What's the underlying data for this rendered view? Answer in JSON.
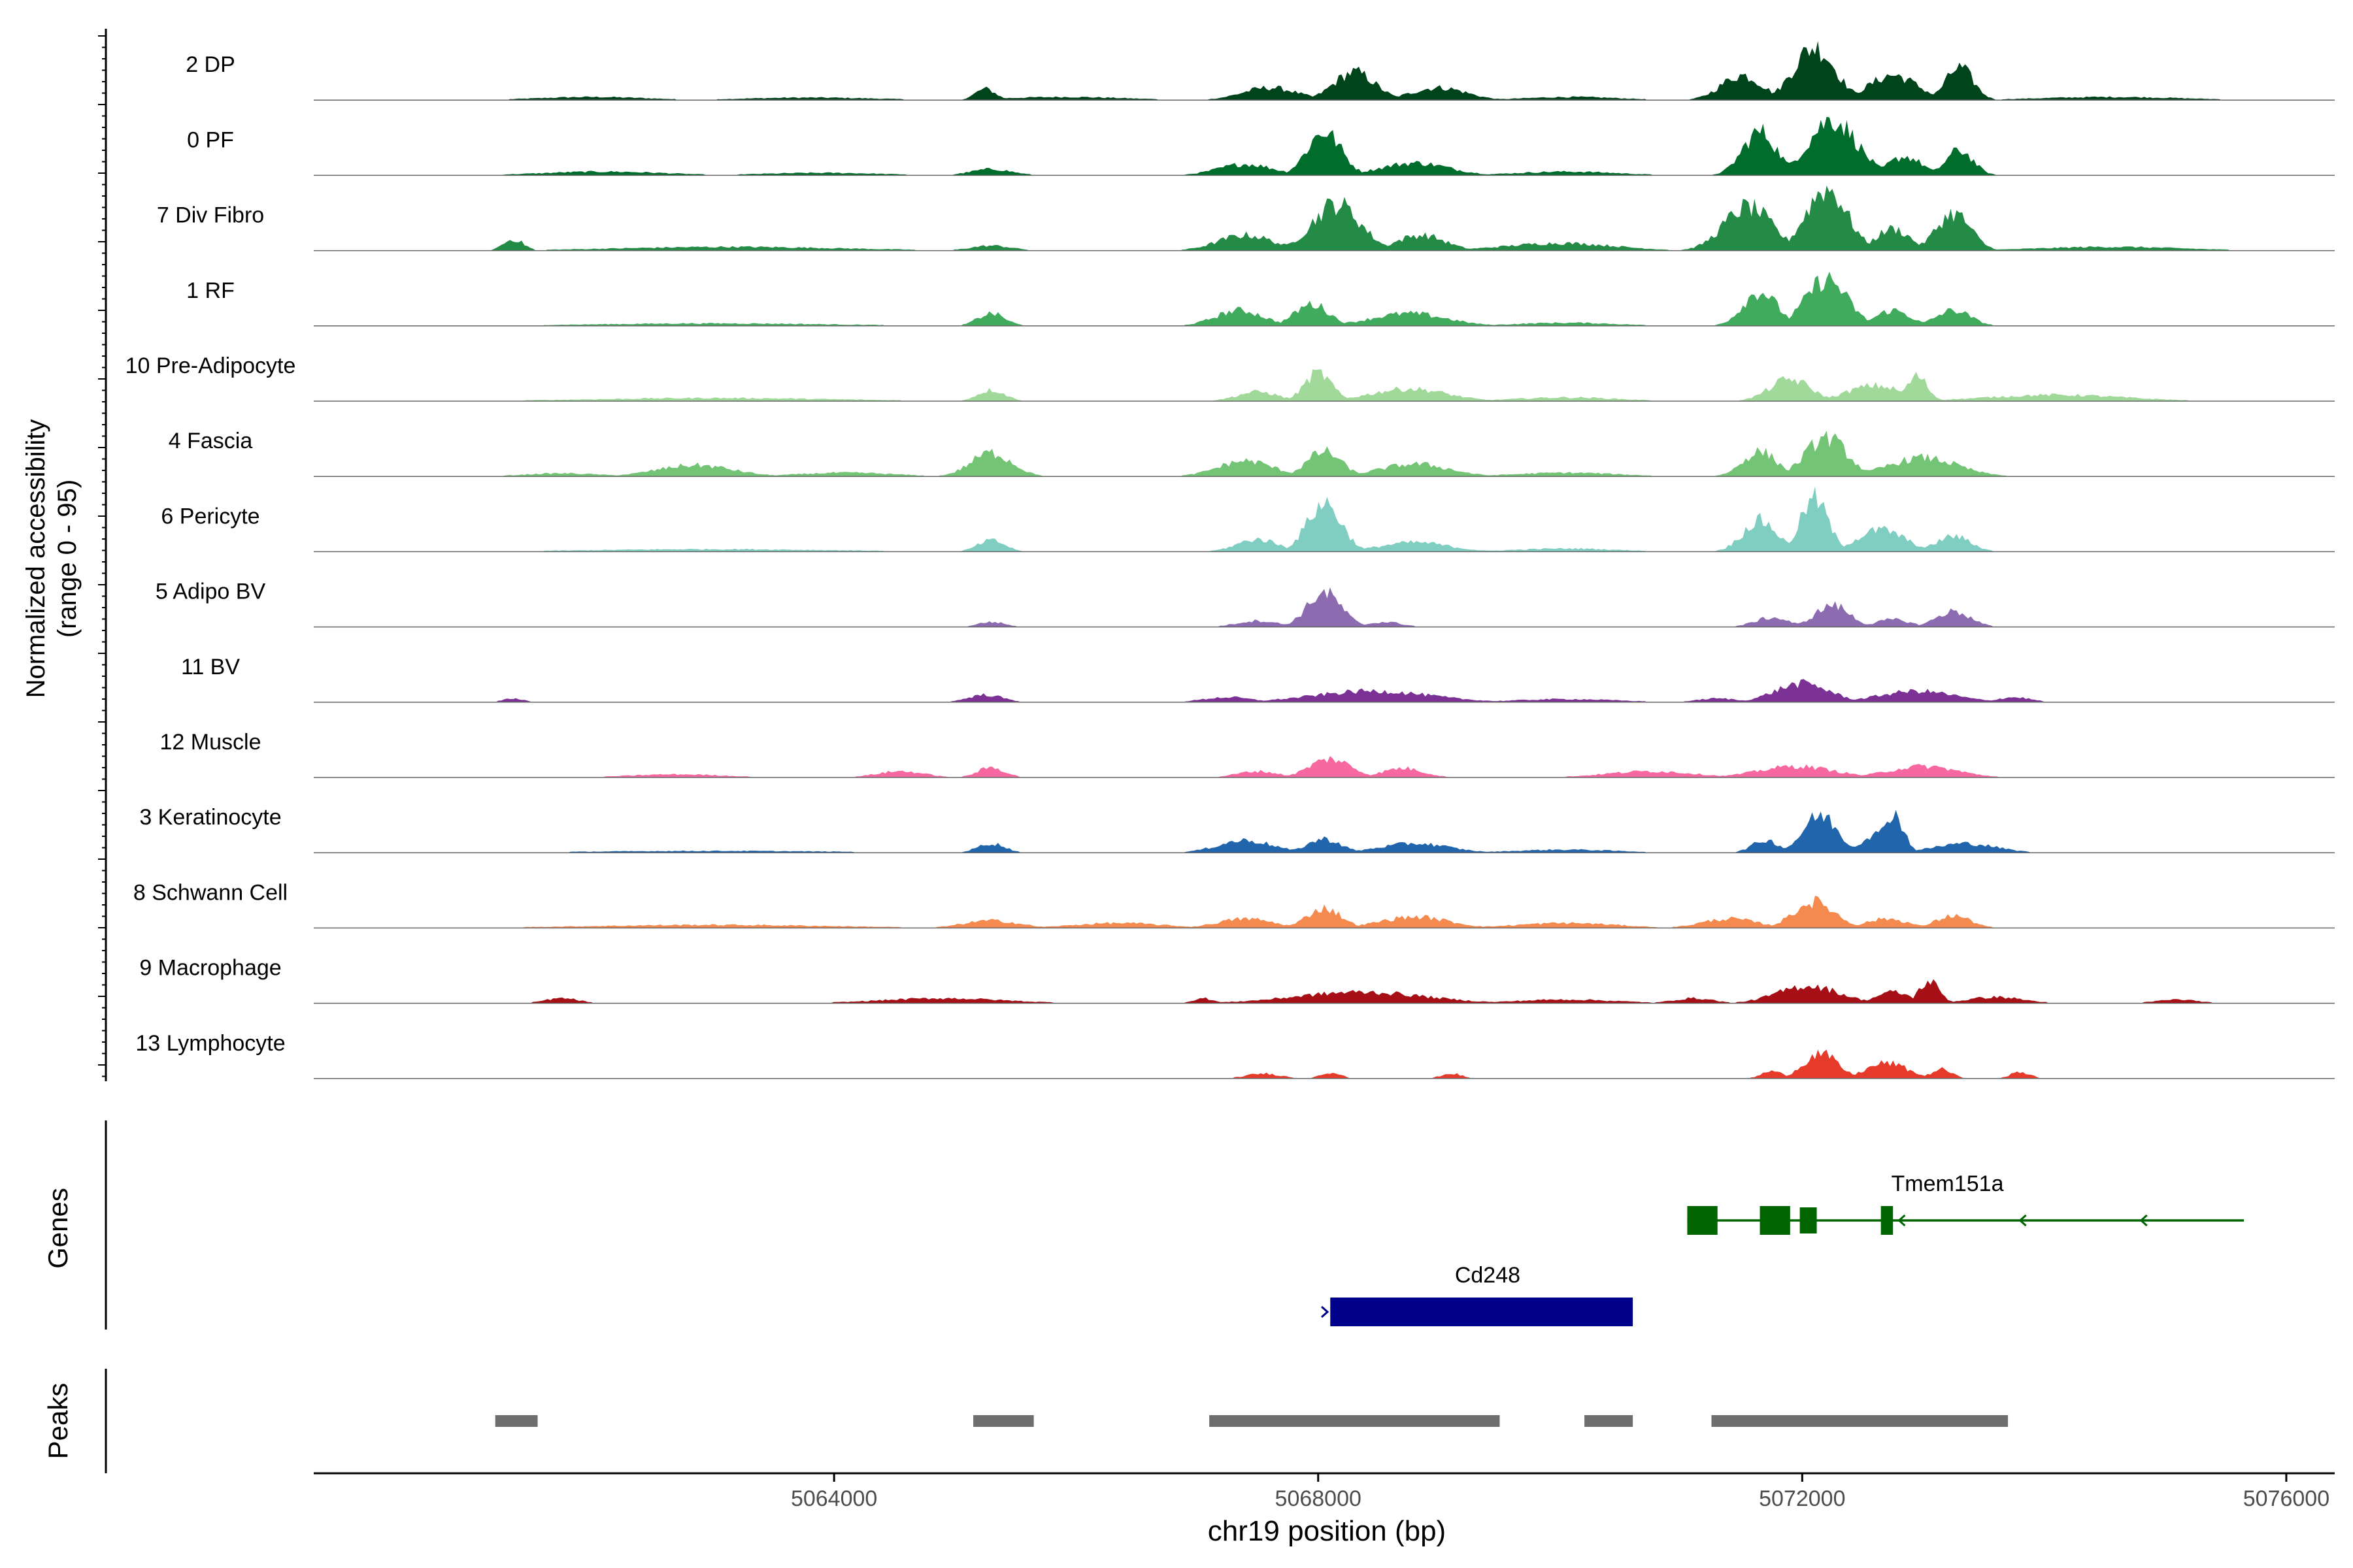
{
  "chart_data": {
    "type": "area",
    "xlabel": "chr19 position (bp)",
    "ylabel_line1": "Normalized accessibility",
    "ylabel_line2": "(range 0 - 95)",
    "xlim": [
      5059700,
      5076400
    ],
    "x_ticks": [
      5064000,
      5068000,
      5072000,
      5076000
    ],
    "x_tick_labels": [
      "5064000",
      "5068000",
      "5072000",
      "5076000"
    ],
    "track_labels": {
      "genes": "Genes",
      "peaks": "Peaks"
    },
    "tracks": [
      {
        "label": "2 DP",
        "color": "#00441b",
        "peaks": [
          [
            5061200,
            5062800,
            0.05
          ],
          [
            5062800,
            5064800,
            0.04
          ],
          [
            5065300,
            5065200,
            0.18
          ],
          [
            5065000,
            5066800,
            0.05
          ],
          [
            5067200,
            5068000,
            0.2
          ],
          [
            5068000,
            5068600,
            0.45
          ],
          [
            5068600,
            5069400,
            0.2
          ],
          [
            5069400,
            5070800,
            0.05
          ],
          [
            5071200,
            5071800,
            0.4
          ],
          [
            5071800,
            5072400,
            0.85
          ],
          [
            5072400,
            5073100,
            0.4
          ],
          [
            5073100,
            5073500,
            0.52
          ],
          [
            5073500,
            5075600,
            0.05
          ]
        ]
      },
      {
        "label": "0 PF",
        "color": "#006d2c",
        "peaks": [
          [
            5061200,
            5063000,
            0.06
          ],
          [
            5063000,
            5064800,
            0.04
          ],
          [
            5065000,
            5065600,
            0.1
          ],
          [
            5067000,
            5067800,
            0.18
          ],
          [
            5067800,
            5068300,
            0.7
          ],
          [
            5068300,
            5069300,
            0.2
          ],
          [
            5069300,
            5070800,
            0.06
          ],
          [
            5071400,
            5071900,
            0.7
          ],
          [
            5071900,
            5072600,
            0.9
          ],
          [
            5072600,
            5073100,
            0.3
          ],
          [
            5073100,
            5073500,
            0.4
          ]
        ]
      },
      {
        "label": "7 Div Fibro",
        "color": "#238b45",
        "peaks": [
          [
            5061200,
            5061500,
            0.18
          ],
          [
            5061500,
            5064800,
            0.06
          ],
          [
            5065000,
            5065600,
            0.08
          ],
          [
            5067000,
            5067800,
            0.25
          ],
          [
            5067800,
            5068500,
            0.75
          ],
          [
            5068500,
            5069200,
            0.25
          ],
          [
            5069200,
            5070800,
            0.12
          ],
          [
            5071200,
            5071900,
            0.7
          ],
          [
            5071900,
            5072500,
            1.0
          ],
          [
            5072500,
            5073000,
            0.35
          ],
          [
            5073000,
            5073500,
            0.6
          ],
          [
            5073500,
            5075600,
            0.06
          ]
        ]
      },
      {
        "label": "1 RF",
        "color": "#41ab5d",
        "peaks": [
          [
            5061200,
            5064800,
            0.04
          ],
          [
            5065100,
            5065500,
            0.2
          ],
          [
            5067000,
            5067700,
            0.25
          ],
          [
            5067700,
            5068200,
            0.35
          ],
          [
            5068200,
            5069300,
            0.2
          ],
          [
            5069300,
            5070800,
            0.05
          ],
          [
            5071400,
            5071900,
            0.55
          ],
          [
            5071900,
            5072500,
            0.75
          ],
          [
            5072500,
            5073000,
            0.25
          ],
          [
            5073000,
            5073500,
            0.25
          ]
        ]
      },
      {
        "label": "10 Pre-Adipocyte",
        "color": "#a1d99b",
        "peaks": [
          [
            5061200,
            5064800,
            0.05
          ],
          [
            5065100,
            5065500,
            0.18
          ],
          [
            5067200,
            5067800,
            0.15
          ],
          [
            5067800,
            5068200,
            0.45
          ],
          [
            5068200,
            5069300,
            0.2
          ],
          [
            5069300,
            5070800,
            0.06
          ],
          [
            5071600,
            5072200,
            0.35
          ],
          [
            5072200,
            5073000,
            0.25
          ],
          [
            5072800,
            5073100,
            0.4
          ],
          [
            5073100,
            5075100,
            0.1
          ]
        ]
      },
      {
        "label": "4 Fascia",
        "color": "#74c476",
        "peaks": [
          [
            5061200,
            5062300,
            0.05
          ],
          [
            5062300,
            5063400,
            0.18
          ],
          [
            5063400,
            5064800,
            0.06
          ],
          [
            5065000,
            5065600,
            0.38
          ],
          [
            5067000,
            5067800,
            0.25
          ],
          [
            5067800,
            5068300,
            0.4
          ],
          [
            5068300,
            5069300,
            0.2
          ],
          [
            5069300,
            5070800,
            0.06
          ],
          [
            5071400,
            5071900,
            0.4
          ],
          [
            5071900,
            5072500,
            0.62
          ],
          [
            5072500,
            5073500,
            0.3
          ]
        ]
      },
      {
        "label": "6 Pericyte",
        "color": "#80cdc1",
        "peaks": [
          [
            5061200,
            5064800,
            0.04
          ],
          [
            5065100,
            5065500,
            0.18
          ],
          [
            5067200,
            5067800,
            0.2
          ],
          [
            5067800,
            5068300,
            0.78
          ],
          [
            5068300,
            5069300,
            0.15
          ],
          [
            5069300,
            5070800,
            0.05
          ],
          [
            5071400,
            5071900,
            0.5
          ],
          [
            5071900,
            5072300,
            0.85
          ],
          [
            5072300,
            5073000,
            0.35
          ],
          [
            5073000,
            5073500,
            0.25
          ]
        ]
      },
      {
        "label": "5 Adipo BV",
        "color": "#8c6bb1",
        "peaks": [
          [
            5065100,
            5065500,
            0.08
          ],
          [
            5067200,
            5067800,
            0.1
          ],
          [
            5067800,
            5068300,
            0.55
          ],
          [
            5068300,
            5068800,
            0.08
          ],
          [
            5071500,
            5072000,
            0.15
          ],
          [
            5072000,
            5072500,
            0.35
          ],
          [
            5072500,
            5073000,
            0.12
          ],
          [
            5073000,
            5073500,
            0.25
          ]
        ]
      },
      {
        "label": "11 BV",
        "color": "#7b3294",
        "peaks": [
          [
            5061200,
            5061500,
            0.06
          ],
          [
            5065000,
            5065500,
            0.12
          ],
          [
            5066900,
            5067600,
            0.08
          ],
          [
            5067600,
            5069300,
            0.18
          ],
          [
            5069300,
            5070800,
            0.05
          ],
          [
            5071000,
            5071600,
            0.06
          ],
          [
            5071600,
            5072400,
            0.3
          ],
          [
            5072400,
            5073500,
            0.18
          ],
          [
            5073500,
            5074000,
            0.08
          ]
        ]
      },
      {
        "label": "12 Muscle",
        "color": "#f768a1",
        "peaks": [
          [
            5062000,
            5063400,
            0.05
          ],
          [
            5064200,
            5064900,
            0.1
          ],
          [
            5065100,
            5065500,
            0.16
          ],
          [
            5067200,
            5067800,
            0.1
          ],
          [
            5067800,
            5068400,
            0.3
          ],
          [
            5068400,
            5069000,
            0.15
          ],
          [
            5070100,
            5071400,
            0.1
          ],
          [
            5071400,
            5072500,
            0.18
          ],
          [
            5072500,
            5073500,
            0.18
          ]
        ]
      },
      {
        "label": "3 Keratinocyte",
        "color": "#2166ac",
        "peaks": [
          [
            5061200,
            5064800,
            0.03
          ],
          [
            5065100,
            5065500,
            0.15
          ],
          [
            5067000,
            5067800,
            0.2
          ],
          [
            5067800,
            5068300,
            0.22
          ],
          [
            5068300,
            5069300,
            0.15
          ],
          [
            5069300,
            5070800,
            0.05
          ],
          [
            5071500,
            5071900,
            0.2
          ],
          [
            5071900,
            5072400,
            0.6
          ],
          [
            5072400,
            5072800,
            0.3
          ],
          [
            5072600,
            5072900,
            0.65
          ],
          [
            5072900,
            5073800,
            0.15
          ]
        ]
      },
      {
        "label": "8 Schwann Cell",
        "color": "#f58a4f",
        "peaks": [
          [
            5061200,
            5064800,
            0.05
          ],
          [
            5064900,
            5065700,
            0.12
          ],
          [
            5065700,
            5067000,
            0.08
          ],
          [
            5067000,
            5067800,
            0.15
          ],
          [
            5067800,
            5068300,
            0.32
          ],
          [
            5068300,
            5069300,
            0.18
          ],
          [
            5069300,
            5070800,
            0.08
          ],
          [
            5071000,
            5071800,
            0.15
          ],
          [
            5071800,
            5072400,
            0.42
          ],
          [
            5072400,
            5073000,
            0.15
          ],
          [
            5073000,
            5073500,
            0.2
          ]
        ]
      },
      {
        "label": "9 Macrophage",
        "color": "#a50f15",
        "peaks": [
          [
            5061500,
            5062000,
            0.08
          ],
          [
            5064000,
            5065800,
            0.08
          ],
          [
            5066900,
            5067200,
            0.08
          ],
          [
            5067400,
            5069300,
            0.18
          ],
          [
            5069300,
            5070800,
            0.06
          ],
          [
            5070800,
            5071400,
            0.08
          ],
          [
            5071600,
            5072500,
            0.28
          ],
          [
            5072500,
            5073000,
            0.18
          ],
          [
            5072900,
            5073200,
            0.35
          ],
          [
            5073200,
            5074000,
            0.1
          ],
          [
            5074800,
            5075400,
            0.06
          ]
        ]
      },
      {
        "label": "13 Lymphocyte",
        "color": "#e63a2b",
        "peaks": [
          [
            5067300,
            5067800,
            0.08
          ],
          [
            5068000,
            5068200,
            0.1
          ],
          [
            5069000,
            5069200,
            0.08
          ],
          [
            5071600,
            5071900,
            0.12
          ],
          [
            5071900,
            5072400,
            0.4
          ],
          [
            5072400,
            5073000,
            0.25
          ],
          [
            5073000,
            5073300,
            0.15
          ],
          [
            5073700,
            5073900,
            0.1
          ]
        ]
      }
    ],
    "genes": [
      {
        "name": "Tmem151a",
        "color": "#006400",
        "start": 5071050,
        "end": 5075650,
        "strand": "-",
        "exons": [
          [
            5071050,
            5071300
          ],
          [
            5071650,
            5071900
          ],
          [
            5071980,
            5072120
          ],
          [
            5072650,
            5072750
          ]
        ],
        "label_pos": 5073200
      },
      {
        "name": "Cd248",
        "color": "#00008b",
        "start": 5068050,
        "end": 5070600,
        "strand": "+",
        "exons": [
          [
            5068100,
            5070600
          ]
        ],
        "label_pos": 5069400
      }
    ],
    "peaks_track": [
      [
        5061200,
        5061550
      ],
      [
        5065150,
        5065650
      ],
      [
        5067100,
        5069500
      ],
      [
        5070200,
        5070600
      ],
      [
        5071250,
        5073700
      ]
    ]
  }
}
